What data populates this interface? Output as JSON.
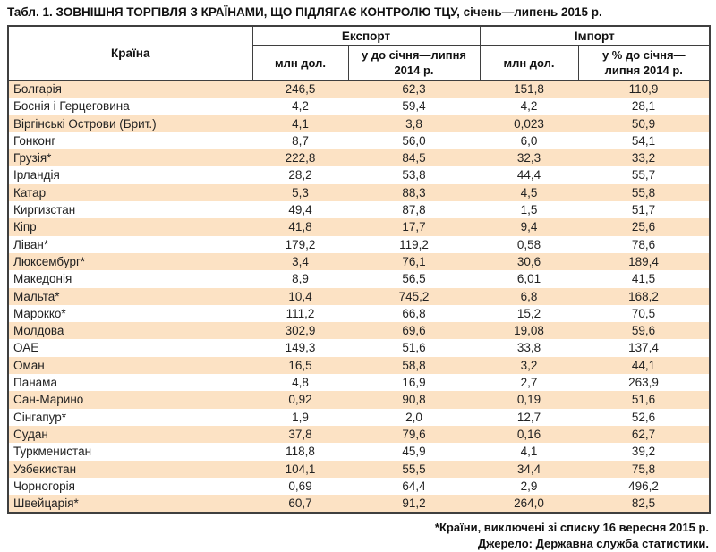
{
  "title": "Табл. 1. ЗОВНІШНЯ ТОРГІВЛЯ З КРАЇНАМИ, ЩО ПІДЛЯГАЄ КОНТРОЛЮ ТЦУ, січень—липень 2015 р.",
  "colors": {
    "row_alt": "#fce2c4",
    "border": "#3f3f3f",
    "text": "#1a1a1a"
  },
  "table": {
    "header": {
      "country": "Країна",
      "group_export": "Експорт",
      "group_import": "Імпорт",
      "export_mln": "млн дол.",
      "export_pct": "у до січня—липня\n2014 р.",
      "import_mln": "млн дол.",
      "import_pct": "у % до січня—\nлипня 2014 р."
    },
    "rows": [
      [
        "Болгарія",
        "246,5",
        "62,3",
        "151,8",
        "110,9"
      ],
      [
        "Боснія і Герцеговина",
        "4,2",
        "59,4",
        "4,2",
        "28,1"
      ],
      [
        "Віргінські Острови (Брит.)",
        "4,1",
        "3,8",
        "0,023",
        "50,9"
      ],
      [
        "Гонконг",
        "8,7",
        "56,0",
        "6,0",
        "54,1"
      ],
      [
        "Грузія*",
        "222,8",
        "84,5",
        "32,3",
        "33,2"
      ],
      [
        "Ірландія",
        "28,2",
        "53,8",
        "44,4",
        "55,7"
      ],
      [
        "Катар",
        "5,3",
        "88,3",
        "4,5",
        "55,8"
      ],
      [
        "Киргизстан",
        "49,4",
        "87,8",
        "1,5",
        "51,7"
      ],
      [
        "Кіпр",
        "41,8",
        "17,7",
        "9,4",
        "25,6"
      ],
      [
        "Ліван*",
        "179,2",
        "119,2",
        "0,58",
        "78,6"
      ],
      [
        "Люксембург*",
        "3,4",
        "76,1",
        "30,6",
        "189,4"
      ],
      [
        "Македонія",
        "8,9",
        "56,5",
        "6,01",
        "41,5"
      ],
      [
        "Мальта*",
        "10,4",
        "745,2",
        "6,8",
        "168,2"
      ],
      [
        "Марокко*",
        "111,2",
        "66,8",
        "15,2",
        "70,5"
      ],
      [
        "Молдова",
        "302,9",
        "69,6",
        "19,08",
        "59,6"
      ],
      [
        "ОАЕ",
        "149,3",
        "51,6",
        "33,8",
        "137,4"
      ],
      [
        "Оман",
        "16,5",
        "58,8",
        "3,2",
        "44,1"
      ],
      [
        "Панама",
        "4,8",
        "16,9",
        "2,7",
        "263,9"
      ],
      [
        "Сан-Марино",
        "0,92",
        "90,8",
        "0,19",
        "51,6"
      ],
      [
        "Сінгапур*",
        "1,9",
        "2,0",
        "12,7",
        "52,6"
      ],
      [
        "Судан",
        "37,8",
        "79,6",
        "0,16",
        "62,7"
      ],
      [
        "Туркменистан",
        "118,8",
        "45,9",
        "4,1",
        "39,2"
      ],
      [
        "Узбекистан",
        "104,1",
        "55,5",
        "34,4",
        "75,8"
      ],
      [
        "Чорногорія",
        "0,69",
        "64,4",
        "2,9",
        "496,2"
      ],
      [
        "Швейцарія*",
        "60,7",
        "91,2",
        "264,0",
        "82,5"
      ]
    ]
  },
  "footnotes": {
    "excluded": "*Країни, виключені зі списку 16 вересня 2015 р.",
    "source": "Джерело: Державна служба статистики."
  }
}
